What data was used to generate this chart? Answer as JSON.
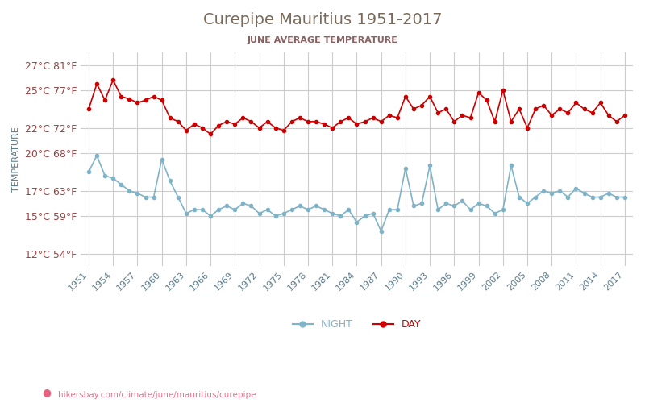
{
  "title": "Curepipe Mauritius 1951-2017",
  "subtitle": "JUNE AVERAGE TEMPERATURE",
  "ylabel": "TEMPERATURE",
  "yticks_c": [
    12,
    15,
    17,
    20,
    22,
    25,
    27
  ],
  "ytick_labels": [
    "12°C 54°F",
    "15°C 59°F",
    "17°C 63°F",
    "20°C 68°F",
    "22°C 72°F",
    "25°C 77°F",
    "27°C 81°F"
  ],
  "ylim": [
    11,
    28
  ],
  "years": [
    1951,
    1952,
    1953,
    1954,
    1955,
    1956,
    1957,
    1958,
    1959,
    1960,
    1961,
    1962,
    1963,
    1964,
    1965,
    1966,
    1967,
    1968,
    1969,
    1970,
    1971,
    1972,
    1973,
    1974,
    1975,
    1976,
    1977,
    1978,
    1979,
    1980,
    1981,
    1982,
    1983,
    1984,
    1985,
    1986,
    1987,
    1988,
    1989,
    1990,
    1991,
    1992,
    1993,
    1994,
    1995,
    1996,
    1997,
    1998,
    1999,
    2000,
    2001,
    2002,
    2003,
    2004,
    2005,
    2006,
    2007,
    2008,
    2009,
    2010,
    2011,
    2012,
    2013,
    2014,
    2015,
    2016,
    2017
  ],
  "day_temps": [
    23.5,
    25.5,
    24.2,
    25.8,
    24.5,
    24.3,
    24.0,
    24.2,
    24.5,
    24.2,
    22.8,
    22.5,
    21.8,
    22.3,
    22.0,
    21.5,
    22.2,
    22.5,
    22.3,
    22.8,
    22.5,
    22.0,
    22.5,
    22.0,
    21.8,
    22.5,
    22.8,
    22.5,
    22.5,
    22.3,
    22.0,
    22.5,
    22.8,
    22.3,
    22.5,
    22.8,
    22.5,
    23.0,
    22.8,
    24.5,
    23.5,
    23.8,
    24.5,
    23.2,
    23.5,
    22.5,
    23.0,
    22.8,
    24.8,
    24.2,
    22.5,
    25.0,
    22.5,
    23.5,
    22.0,
    23.5,
    23.8,
    23.0,
    23.5,
    23.2,
    24.0,
    23.5,
    23.2,
    24.0,
    23.0,
    22.5,
    23.0
  ],
  "night_temps": [
    18.5,
    19.8,
    18.2,
    18.0,
    17.5,
    17.0,
    16.8,
    16.5,
    16.5,
    19.5,
    17.8,
    16.5,
    15.2,
    15.5,
    15.5,
    15.0,
    15.5,
    15.8,
    15.5,
    16.0,
    15.8,
    15.2,
    15.5,
    15.0,
    15.2,
    15.5,
    15.8,
    15.5,
    15.8,
    15.5,
    15.2,
    15.0,
    15.5,
    14.5,
    15.0,
    15.2,
    13.8,
    15.5,
    15.5,
    18.8,
    15.8,
    16.0,
    19.0,
    15.5,
    16.0,
    15.8,
    16.2,
    15.5,
    16.0,
    15.8,
    15.2,
    15.5,
    19.0,
    16.5,
    16.0,
    16.5,
    17.0,
    16.8,
    17.0,
    16.5,
    17.2,
    16.8,
    16.5,
    16.5,
    16.8,
    16.5,
    16.5
  ],
  "day_color": "#cc0000",
  "night_color": "#7fb3c8",
  "title_color": "#7a6a5a",
  "subtitle_color": "#8b6060",
  "ylabel_color": "#5a7a8a",
  "ytick_color": "#994444",
  "xtick_color": "#5a7a8a",
  "grid_color": "#cccccc",
  "bg_color": "#ffffff",
  "legend_night_label": "NIGHT",
  "legend_day_label": "DAY",
  "watermark": "hikersbay.com/climate/june/mauritius/curepipe",
  "xtick_years": [
    1951,
    1954,
    1957,
    1960,
    1963,
    1966,
    1969,
    1972,
    1975,
    1978,
    1981,
    1984,
    1987,
    1990,
    1993,
    1996,
    1999,
    2002,
    2005,
    2008,
    2011,
    2014,
    2017
  ]
}
